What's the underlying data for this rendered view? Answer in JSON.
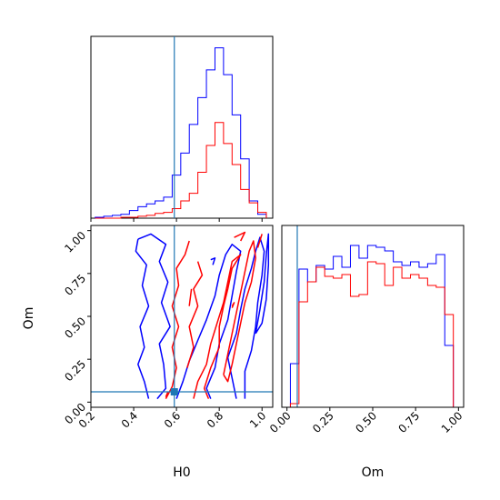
{
  "chart_data": {
    "type": "corner",
    "parameters": [
      "H0",
      "Om"
    ],
    "xlabels": {
      "h0": "H0",
      "om": "Om"
    },
    "ylabels": {
      "om": "Om"
    },
    "truth": {
      "H0": 0.59,
      "Om": 0.06,
      "color": "#1f77b4"
    },
    "colors": {
      "series_a": "#0000ff",
      "series_b": "#ff0000"
    },
    "h0_ticks": [
      "0.2",
      "0.4",
      "0.6",
      "0.8",
      "1.0"
    ],
    "om_ticks": [
      "0.00",
      "0.25",
      "0.50",
      "0.75",
      "1.00"
    ],
    "ranges": {
      "H0": [
        0.2,
        1.05
      ],
      "Om": [
        -0.03,
        1.03
      ]
    },
    "hist_H0": {
      "bins": [
        0.22,
        0.26,
        0.3,
        0.34,
        0.38,
        0.42,
        0.46,
        0.5,
        0.54,
        0.58,
        0.62,
        0.66,
        0.7,
        0.74,
        0.78,
        0.82,
        0.86,
        0.9,
        0.94,
        0.98,
        1.02
      ],
      "ymax": 190,
      "series": [
        {
          "color": "#0000ff",
          "values": [
            1,
            2,
            3,
            4,
            8,
            12,
            15,
            18,
            22,
            45,
            68,
            98,
            126,
            155,
            178,
            150,
            108,
            62,
            18,
            4
          ]
        },
        {
          "color": "#ff0000",
          "values": [
            0,
            0,
            0,
            1,
            1,
            2,
            3,
            5,
            6,
            10,
            18,
            26,
            48,
            76,
            100,
            78,
            56,
            30,
            16,
            6
          ]
        }
      ]
    },
    "hist_Om": {
      "bins": [
        -0.03,
        0.02,
        0.07,
        0.12,
        0.17,
        0.22,
        0.27,
        0.32,
        0.37,
        0.42,
        0.47,
        0.52,
        0.57,
        0.62,
        0.67,
        0.72,
        0.77,
        0.82,
        0.87,
        0.92,
        0.97,
        1.02
      ],
      "ymax": 100,
      "series": [
        {
          "color": "#0000ff",
          "values": [
            0,
            24,
            76,
            69,
            78,
            76,
            83,
            77,
            89,
            82,
            89,
            88,
            86,
            80,
            78,
            80,
            77,
            79,
            84,
            34,
            0
          ]
        },
        {
          "color": "#ff0000",
          "values": [
            0,
            2,
            58,
            69,
            77,
            72,
            71,
            73,
            61,
            62,
            80,
            79,
            67,
            77,
            71,
            73,
            71,
            67,
            66,
            51,
            0
          ]
        }
      ]
    },
    "contours": [
      {
        "color": "#0000ff",
        "paths": [
          [
            [
              0.42,
              0.95
            ],
            [
              0.48,
              0.98
            ],
            [
              0.55,
              0.92
            ],
            [
              0.52,
              0.82
            ],
            [
              0.56,
              0.7
            ],
            [
              0.53,
              0.58
            ],
            [
              0.57,
              0.44
            ],
            [
              0.52,
              0.34
            ],
            [
              0.54,
              0.22
            ],
            [
              0.55,
              0.08
            ],
            [
              0.51,
              0.02
            ]
          ],
          [
            [
              0.47,
              0.02
            ],
            [
              0.45,
              0.12
            ],
            [
              0.42,
              0.22
            ],
            [
              0.45,
              0.32
            ],
            [
              0.43,
              0.44
            ],
            [
              0.47,
              0.56
            ],
            [
              0.44,
              0.68
            ],
            [
              0.46,
              0.8
            ],
            [
              0.41,
              0.88
            ],
            [
              0.42,
              0.95
            ]
          ],
          [
            [
              0.6,
              0.02
            ],
            [
              0.63,
              0.12
            ],
            [
              0.66,
              0.24
            ],
            [
              0.7,
              0.36
            ],
            [
              0.74,
              0.48
            ],
            [
              0.78,
              0.62
            ],
            [
              0.8,
              0.74
            ],
            [
              0.83,
              0.86
            ],
            [
              0.86,
              0.92
            ],
            [
              0.9,
              0.88
            ],
            [
              0.88,
              0.76
            ],
            [
              0.86,
              0.62
            ],
            [
              0.84,
              0.48
            ],
            [
              0.8,
              0.34
            ],
            [
              0.78,
              0.2
            ],
            [
              0.74,
              0.08
            ],
            [
              0.76,
              0.02
            ]
          ],
          [
            [
              0.88,
              0.02
            ],
            [
              0.86,
              0.14
            ],
            [
              0.84,
              0.26
            ],
            [
              0.88,
              0.4
            ],
            [
              0.9,
              0.54
            ],
            [
              0.92,
              0.66
            ],
            [
              0.95,
              0.78
            ],
            [
              0.97,
              0.88
            ],
            [
              0.99,
              0.96
            ],
            [
              1.01,
              0.88
            ],
            [
              1.0,
              0.74
            ],
            [
              0.98,
              0.58
            ],
            [
              0.97,
              0.44
            ],
            [
              0.95,
              0.3
            ],
            [
              0.92,
              0.18
            ],
            [
              0.92,
              0.02
            ]
          ],
          [
            [
              0.97,
              0.4
            ],
            [
              0.99,
              0.54
            ],
            [
              1.01,
              0.7
            ],
            [
              1.02,
              0.86
            ],
            [
              1.03,
              0.98
            ],
            [
              1.03,
              0.8
            ],
            [
              1.02,
              0.6
            ],
            [
              1.0,
              0.46
            ],
            [
              0.97,
              0.4
            ]
          ],
          [
            [
              0.77,
              0.8
            ],
            [
              0.78,
              0.84
            ],
            [
              0.76,
              0.83
            ]
          ]
        ]
      },
      {
        "color": "#ff0000",
        "paths": [
          [
            [
              0.55,
              0.02
            ],
            [
              0.58,
              0.09
            ],
            [
              0.6,
              0.2
            ],
            [
              0.58,
              0.32
            ],
            [
              0.61,
              0.44
            ],
            [
              0.58,
              0.56
            ],
            [
              0.61,
              0.68
            ],
            [
              0.6,
              0.78
            ],
            [
              0.64,
              0.86
            ],
            [
              0.66,
              0.94
            ]
          ],
          [
            [
              0.65,
              0.2
            ],
            [
              0.68,
              0.32
            ],
            [
              0.66,
              0.44
            ],
            [
              0.7,
              0.56
            ],
            [
              0.68,
              0.66
            ],
            [
              0.72,
              0.74
            ],
            [
              0.7,
              0.82
            ]
          ],
          [
            [
              0.66,
              0.56
            ],
            [
              0.67,
              0.66
            ]
          ],
          [
            [
              0.68,
              0.02
            ],
            [
              0.7,
              0.12
            ],
            [
              0.74,
              0.22
            ],
            [
              0.76,
              0.34
            ],
            [
              0.79,
              0.46
            ],
            [
              0.82,
              0.58
            ],
            [
              0.84,
              0.7
            ],
            [
              0.86,
              0.82
            ],
            [
              0.9,
              0.86
            ],
            [
              0.86,
              0.78
            ],
            [
              0.84,
              0.66
            ],
            [
              0.82,
              0.56
            ],
            [
              0.8,
              0.44
            ],
            [
              0.8,
              0.32
            ],
            [
              0.76,
              0.2
            ],
            [
              0.73,
              0.08
            ],
            [
              0.75,
              0.02
            ]
          ],
          [
            [
              0.82,
              0.16
            ],
            [
              0.84,
              0.28
            ],
            [
              0.86,
              0.4
            ],
            [
              0.88,
              0.52
            ],
            [
              0.9,
              0.64
            ],
            [
              0.92,
              0.76
            ],
            [
              0.94,
              0.88
            ],
            [
              0.96,
              0.94
            ],
            [
              0.97,
              0.84
            ],
            [
              0.95,
              0.7
            ],
            [
              0.92,
              0.58
            ],
            [
              0.9,
              0.46
            ],
            [
              0.88,
              0.34
            ],
            [
              0.86,
              0.22
            ],
            [
              0.84,
              0.12
            ],
            [
              0.82,
              0.16
            ]
          ],
          [
            [
              0.87,
              0.96
            ],
            [
              0.92,
              0.99
            ],
            [
              0.9,
              0.94
            ]
          ],
          [
            [
              0.86,
              0.55
            ],
            [
              0.87,
              0.58
            ],
            [
              0.86,
              0.56
            ]
          ],
          [
            [
              0.98,
              0.9
            ],
            [
              1.0,
              0.98
            ]
          ],
          [
            [
              0.56,
              0.06
            ],
            [
              0.55,
              0.03
            ]
          ]
        ]
      }
    ]
  }
}
